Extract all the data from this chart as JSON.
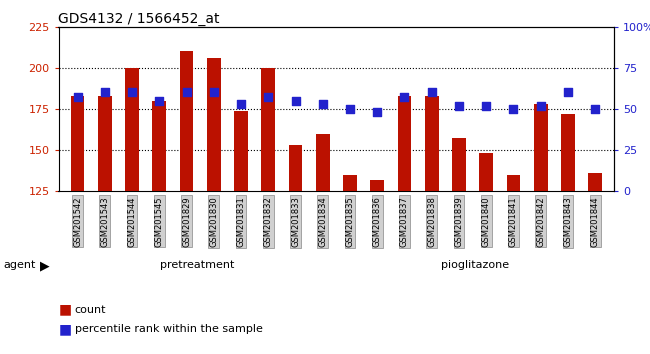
{
  "title": "GDS4132 / 1566452_at",
  "samples": [
    "GSM201542",
    "GSM201543",
    "GSM201544",
    "GSM201545",
    "GSM201829",
    "GSM201830",
    "GSM201831",
    "GSM201832",
    "GSM201833",
    "GSM201834",
    "GSM201835",
    "GSM201836",
    "GSM201837",
    "GSM201838",
    "GSM201839",
    "GSM201840",
    "GSM201841",
    "GSM201842",
    "GSM201843",
    "GSM201844"
  ],
  "counts": [
    183,
    183,
    200,
    180,
    210,
    206,
    174,
    200,
    153,
    160,
    135,
    132,
    183,
    183,
    157,
    148,
    135,
    178,
    172,
    136
  ],
  "percentiles": [
    57,
    60,
    60,
    55,
    60,
    60,
    53,
    57,
    55,
    53,
    50,
    48,
    57,
    60,
    52,
    52,
    50,
    52,
    60,
    50
  ],
  "pretreatment_count": 10,
  "pioglitazone_count": 10,
  "ylim_left": [
    125,
    225
  ],
  "ylim_right": [
    0,
    100
  ],
  "yticks_left": [
    125,
    150,
    175,
    200,
    225
  ],
  "yticks_right": [
    0,
    25,
    50,
    75,
    100
  ],
  "bar_color": "#bb1100",
  "dot_color": "#2222cc",
  "pretreatment_color": "#ccffcc",
  "pioglitazone_color": "#44ee44",
  "dark_band_color": "#333333",
  "bg_color": "#ffffff",
  "plot_bg_color": "#ffffff",
  "tick_label_color_left": "#cc2200",
  "tick_label_color_right": "#2222cc",
  "grid_color": "#000000",
  "title_fontsize": 10,
  "legend_fontsize": 8,
  "bar_width": 0.5
}
